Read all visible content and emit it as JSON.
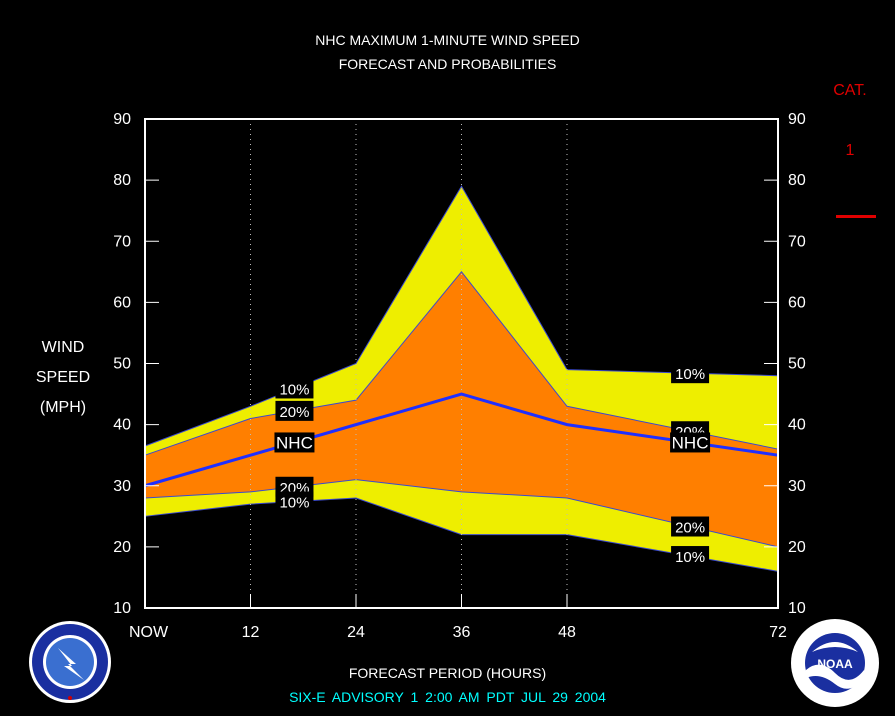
{
  "header": {
    "title_line1": "NHC MAXIMUM 1-MINUTE WIND SPEED",
    "title_line2": "FORECAST AND PROBABILITIES"
  },
  "y_axis": {
    "label_line1": "WIND",
    "label_line2": "SPEED",
    "label_line3": "(MPH)"
  },
  "x_axis": {
    "label": "FORECAST PERIOD (HOURS)"
  },
  "footer": {
    "advisory": "SIX-E   ADVISORY  1 2:00  AM  PDT  JUL 29  2004"
  },
  "category_panel": {
    "title": "CAT.",
    "value": "1",
    "line_color": "#e00000"
  },
  "colors": {
    "outer_band": "#eeee00",
    "inner_band": "#ff7f00",
    "nhc_line": "#1f2fff",
    "band_edge": "#3a4ad0",
    "frame": "#ffffff",
    "grid": "#bbbbbb",
    "footer_text": "#00ffff",
    "category": "#e00000"
  },
  "logos": {
    "left_icon": "nws-logo-icon",
    "right_icon": "noaa-logo-icon"
  },
  "chart_data": {
    "type": "area",
    "x": [
      0,
      12,
      24,
      36,
      48,
      72
    ],
    "x_tick_labels": [
      "NOW",
      "12",
      "24",
      "36",
      "48",
      "72"
    ],
    "xlim": [
      0,
      72
    ],
    "ylim": [
      10,
      90
    ],
    "y_ticks": [
      10,
      20,
      30,
      40,
      50,
      60,
      70,
      80,
      90
    ],
    "grid": "vertical dotted",
    "series": [
      {
        "name": "10%",
        "role": "upper10",
        "values": [
          36.5,
          43,
          50,
          79,
          49,
          48
        ]
      },
      {
        "name": "20%",
        "role": "upper20",
        "values": [
          35,
          41,
          44,
          65,
          43,
          36
        ]
      },
      {
        "name": "NHC",
        "role": "nhc",
        "values": [
          30,
          35,
          40,
          45,
          40,
          35
        ]
      },
      {
        "name": "20%",
        "role": "lower20",
        "values": [
          28,
          29,
          31,
          29,
          28,
          20
        ]
      },
      {
        "name": "10%",
        "role": "lower10",
        "values": [
          25,
          27,
          28,
          22,
          22,
          16
        ]
      }
    ],
    "labels": [
      {
        "text": "10%",
        "role": "upper10",
        "x": 17
      },
      {
        "text": "20%",
        "role": "upper20",
        "x": 17
      },
      {
        "text": "NHC",
        "role": "nhc",
        "x": 17
      },
      {
        "text": "20%",
        "role": "lower20",
        "x": 17
      },
      {
        "text": "10%",
        "role": "lower10",
        "x": 17
      },
      {
        "text": "10%",
        "role": "upper10",
        "x": 62
      },
      {
        "text": "20%",
        "role": "upper20",
        "x": 62
      },
      {
        "text": "NHC",
        "role": "nhc",
        "x": 62
      },
      {
        "text": "20%",
        "role": "lower20",
        "x": 62
      },
      {
        "text": "10%",
        "role": "lower10",
        "x": 62
      }
    ]
  }
}
